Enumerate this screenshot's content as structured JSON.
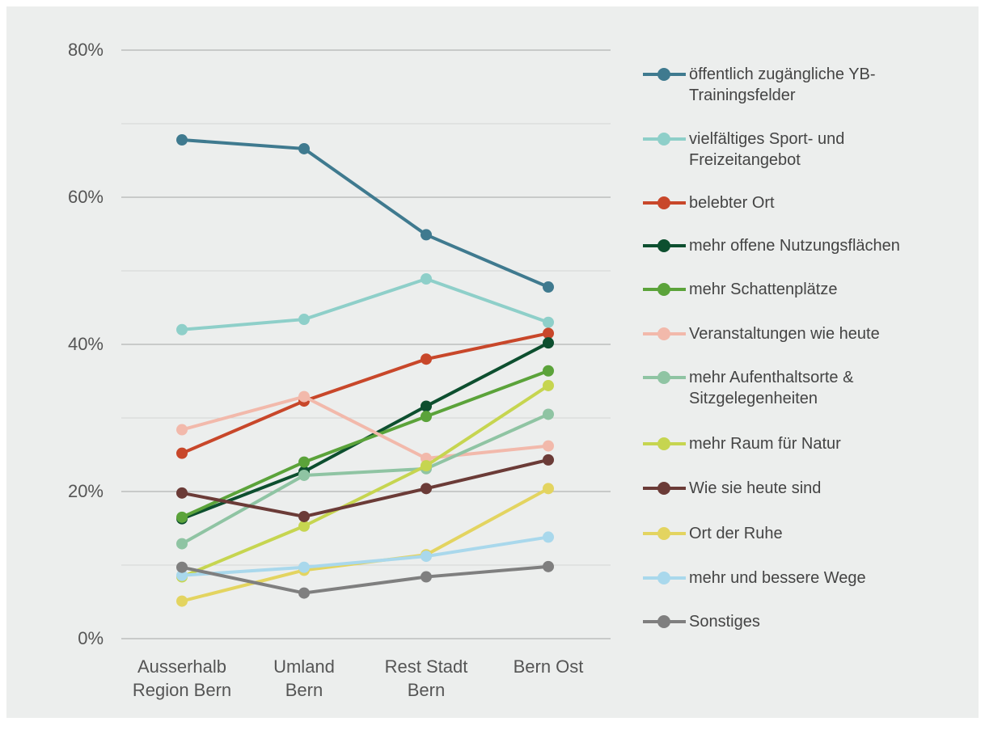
{
  "chart_data": {
    "type": "line",
    "categories": [
      "Ausserhalb Region Bern",
      "Umland Bern",
      "Rest Stadt Bern",
      "Bern Ost"
    ],
    "series": [
      {
        "name": "öffentlich zugängliche YB-Trainingsfelder",
        "color": "#3f7a8f",
        "values": [
          67.8,
          66.6,
          54.9,
          47.8
        ]
      },
      {
        "name": "vielfältiges Sport- und Freizeitangebot",
        "color": "#8ecfc9",
        "values": [
          42.0,
          43.4,
          48.9,
          43.0
        ]
      },
      {
        "name": "belebter Ort",
        "color": "#c8472a",
        "values": [
          25.2,
          32.3,
          38.0,
          41.5
        ]
      },
      {
        "name": "mehr offene Nutzungsflächen",
        "color": "#0d4f2f",
        "values": [
          16.3,
          22.7,
          31.6,
          40.2
        ]
      },
      {
        "name": "mehr Schattenplätze",
        "color": "#5ba33a",
        "values": [
          16.5,
          24.0,
          30.2,
          36.4
        ]
      },
      {
        "name": "Veranstaltungen wie heute",
        "color": "#f2b9ab",
        "values": [
          28.4,
          32.9,
          24.5,
          26.2
        ]
      },
      {
        "name": "mehr Aufenthaltsorte & Sitzgelegenheiten",
        "color": "#8fc4a3",
        "values": [
          12.9,
          22.2,
          23.1,
          30.5
        ]
      },
      {
        "name": "mehr Raum für Natur",
        "color": "#c6d550",
        "values": [
          8.4,
          15.3,
          23.5,
          34.4
        ]
      },
      {
        "name": "Wie sie heute sind",
        "color": "#6b3b37",
        "values": [
          19.8,
          16.6,
          20.4,
          24.3
        ]
      },
      {
        "name": "Ort der Ruhe",
        "color": "#e3d460",
        "values": [
          5.1,
          9.3,
          11.4,
          20.4
        ]
      },
      {
        "name": "mehr und bessere Wege",
        "color": "#a9d8ec",
        "values": [
          8.6,
          9.7,
          11.2,
          13.8
        ]
      },
      {
        "name": "Sonstiges",
        "color": "#7f7f7f",
        "values": [
          9.7,
          6.2,
          8.4,
          9.8
        ]
      }
    ],
    "ylim": [
      0,
      80
    ],
    "yticks": [
      {
        "value": 0,
        "label": "0%"
      },
      {
        "value": 20,
        "label": "20%"
      },
      {
        "value": 40,
        "label": "40%"
      },
      {
        "value": 60,
        "label": "60%"
      },
      {
        "value": 80,
        "label": "80%"
      }
    ],
    "minor_yticks": [
      10,
      30,
      50,
      70
    ],
    "grid": true,
    "legend": "right"
  }
}
